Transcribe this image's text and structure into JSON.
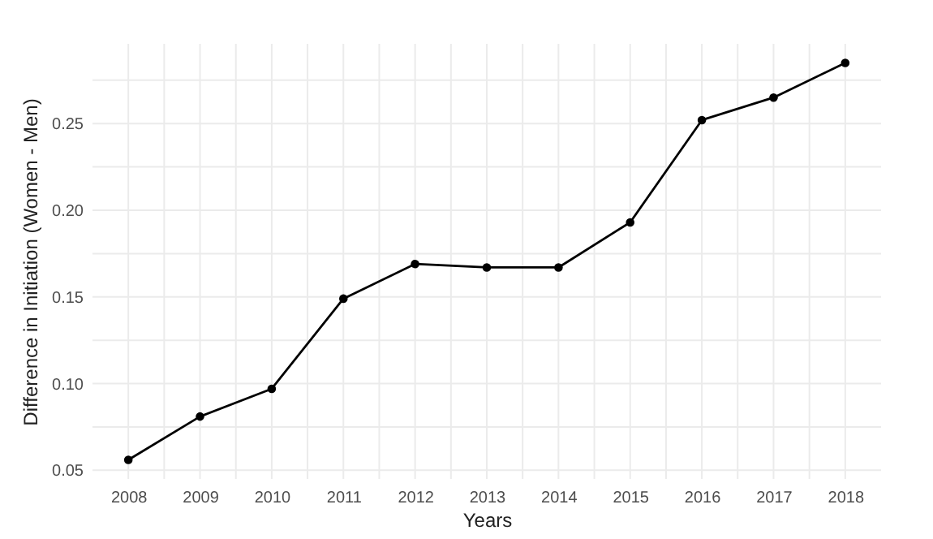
{
  "chart_data": {
    "type": "line",
    "xlabel": "Years",
    "ylabel": "Difference in Initiation (Women - Men)",
    "x": [
      2008,
      2009,
      2010,
      2011,
      2012,
      2013,
      2014,
      2015,
      2016,
      2017,
      2018
    ],
    "series": [
      {
        "color": "#000000",
        "values": [
          0.056,
          0.081,
          0.097,
          0.149,
          0.169,
          0.167,
          0.167,
          0.193,
          0.252,
          0.265,
          0.285
        ]
      }
    ],
    "xlim": [
      2007.5,
      2018.5
    ],
    "xticks": [
      2008,
      {
        "value": 2008.5,
        "label": null
      },
      2009,
      {
        "value": 2009.5,
        "label": null
      },
      2010,
      {
        "value": 2010.5,
        "label": null
      },
      2011,
      {
        "value": 2011.5,
        "label": null
      },
      2012,
      {
        "value": 2012.5,
        "label": null
      },
      2013,
      {
        "value": 2013.5,
        "label": null
      },
      2014,
      {
        "value": 2014.5,
        "label": null
      },
      2015,
      {
        "value": 2015.5,
        "label": null
      },
      2016,
      {
        "value": 2016.5,
        "label": null
      },
      2017,
      {
        "value": 2017.5,
        "label": null
      },
      2018
    ],
    "ylim": [
      0.045,
      0.296
    ],
    "yticks": [
      {
        "value": 0.05,
        "label": "0.05"
      },
      {
        "value": 0.075,
        "label": null
      },
      {
        "value": 0.1,
        "label": "0.10"
      },
      {
        "value": 0.125,
        "label": null
      },
      {
        "value": 0.15,
        "label": "0.15"
      },
      {
        "value": 0.175,
        "label": null
      },
      {
        "value": 0.2,
        "label": "0.20"
      },
      {
        "value": 0.225,
        "label": null
      },
      {
        "value": 0.25,
        "label": "0.25"
      },
      {
        "value": 0.275,
        "label": null
      }
    ],
    "grid": true,
    "marker": "circle",
    "line_style": "solid"
  }
}
